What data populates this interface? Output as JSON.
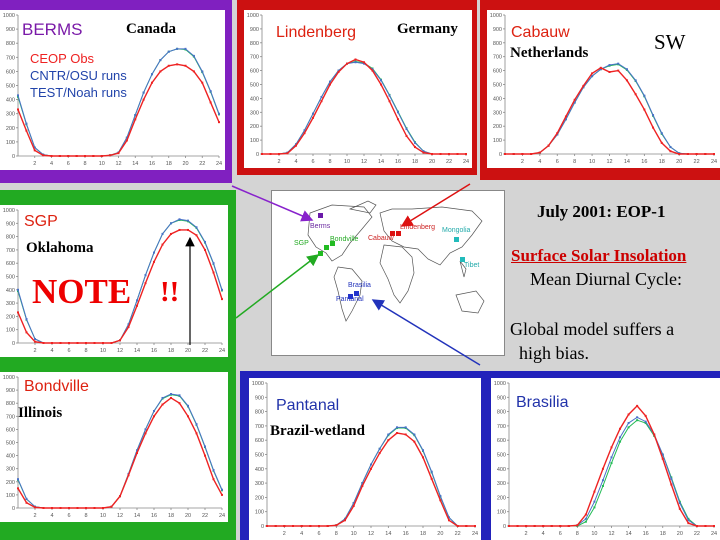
{
  "colors": {
    "obs": "#ee2222",
    "cntr": "#4a72c8",
    "test": "#22bb55"
  },
  "legend": {
    "obs": "CEOP Obs",
    "cntr": "CNTR/OSU runs",
    "test": "TEST/Noah runs"
  },
  "text": {
    "sw": "SW",
    "title": "July 2001: EOP-1",
    "heading": "Surface Solar Insolation",
    "subheading": "Mean Diurnal Cycle:",
    "note": "NOTE",
    "exclaim": "!!",
    "bias_line1": "Global model suffers a",
    "bias_line2": "high bias."
  },
  "map_labels": [
    "Berms",
    "Bondville",
    "SGP",
    "Lindenberg",
    "Cabauw",
    "Mongolia",
    "Tibet",
    "Brasilia",
    "Pantanal"
  ],
  "chart_data": [
    {
      "type": "line",
      "site": "BERMS",
      "region": "Canada",
      "xlim": [
        0,
        24
      ],
      "ylim": [
        0,
        1000
      ],
      "x": [
        0,
        1,
        2,
        3,
        4,
        5,
        6,
        7,
        8,
        9,
        10,
        11,
        12,
        13,
        14,
        15,
        16,
        17,
        18,
        19,
        20,
        21,
        22,
        23,
        24
      ],
      "xticks": [
        "2",
        "4",
        "6",
        "8",
        "10",
        "12",
        "14",
        "16",
        "18",
        "20",
        "22",
        "24"
      ],
      "yticks": [
        "0",
        "100",
        "200",
        "300",
        "400",
        "500",
        "600",
        "700",
        "800",
        "900",
        "1000"
      ],
      "series": [
        {
          "key": "obs",
          "values": [
            330,
            180,
            40,
            5,
            0,
            0,
            0,
            0,
            0,
            0,
            0,
            5,
            20,
            110,
            260,
            400,
            520,
            600,
            640,
            650,
            640,
            600,
            520,
            380,
            240
          ]
        },
        {
          "key": "cntr",
          "values": [
            430,
            230,
            60,
            10,
            0,
            0,
            0,
            0,
            0,
            0,
            0,
            5,
            25,
            130,
            290,
            450,
            580,
            680,
            740,
            760,
            760,
            710,
            600,
            460,
            300
          ]
        },
        {
          "key": "test",
          "values": [
            420,
            225,
            60,
            10,
            0,
            0,
            0,
            0,
            0,
            0,
            0,
            5,
            25,
            130,
            290,
            450,
            580,
            680,
            740,
            760,
            755,
            705,
            595,
            455,
            295
          ]
        }
      ]
    },
    {
      "type": "line",
      "site": "Lindenberg",
      "region": "Germany",
      "xlim": [
        0,
        24
      ],
      "ylim": [
        0,
        1000
      ],
      "x": [
        0,
        1,
        2,
        3,
        4,
        5,
        6,
        7,
        8,
        9,
        10,
        11,
        12,
        13,
        14,
        15,
        16,
        17,
        18,
        19,
        20,
        21,
        22,
        23,
        24
      ],
      "xticks": [
        "2",
        "4",
        "6",
        "8",
        "10",
        "12",
        "14",
        "16",
        "18",
        "20",
        "22",
        "24"
      ],
      "yticks": [
        "0",
        "100",
        "200",
        "300",
        "400",
        "500",
        "600",
        "700",
        "800",
        "900",
        "1000"
      ],
      "series": [
        {
          "key": "obs",
          "values": [
            0,
            0,
            0,
            5,
            60,
            150,
            260,
            380,
            500,
            590,
            650,
            680,
            660,
            600,
            500,
            380,
            250,
            130,
            50,
            10,
            0,
            0,
            0,
            0,
            0
          ]
        },
        {
          "key": "cntr",
          "values": [
            0,
            0,
            0,
            10,
            70,
            170,
            290,
            410,
            520,
            600,
            650,
            660,
            650,
            610,
            530,
            420,
            300,
            180,
            80,
            20,
            0,
            0,
            0,
            0,
            0
          ]
        },
        {
          "key": "test",
          "values": [
            0,
            0,
            0,
            10,
            70,
            170,
            290,
            410,
            520,
            600,
            650,
            665,
            655,
            615,
            535,
            425,
            305,
            185,
            85,
            20,
            0,
            0,
            0,
            0,
            0
          ]
        }
      ]
    },
    {
      "type": "line",
      "site": "Cabauw",
      "region": "Netherlands",
      "xlim": [
        0,
        24
      ],
      "ylim": [
        0,
        1000
      ],
      "x": [
        0,
        1,
        2,
        3,
        4,
        5,
        6,
        7,
        8,
        9,
        10,
        11,
        12,
        13,
        14,
        15,
        16,
        17,
        18,
        19,
        20,
        21,
        22,
        23,
        24
      ],
      "xticks": [
        "2",
        "4",
        "6",
        "8",
        "10",
        "12",
        "14",
        "16",
        "18",
        "20",
        "22",
        "24"
      ],
      "yticks": [
        "0",
        "100",
        "200",
        "300",
        "400",
        "500",
        "600",
        "700",
        "800",
        "900",
        "1000"
      ],
      "series": [
        {
          "key": "obs",
          "values": [
            0,
            0,
            0,
            0,
            10,
            60,
            150,
            270,
            390,
            490,
            580,
            620,
            590,
            600,
            530,
            430,
            320,
            190,
            80,
            20,
            0,
            0,
            0,
            0,
            0
          ]
        },
        {
          "key": "cntr",
          "values": [
            0,
            0,
            0,
            0,
            10,
            60,
            140,
            250,
            370,
            480,
            560,
            610,
            640,
            650,
            610,
            530,
            420,
            280,
            150,
            50,
            5,
            0,
            0,
            0,
            0
          ]
        },
        {
          "key": "test",
          "values": [
            0,
            0,
            0,
            0,
            10,
            60,
            140,
            250,
            370,
            480,
            560,
            610,
            635,
            645,
            605,
            525,
            415,
            275,
            145,
            50,
            5,
            0,
            0,
            0,
            0
          ]
        }
      ]
    },
    {
      "type": "line",
      "site": "SGP",
      "region": "Oklahoma",
      "xlim": [
        0,
        24
      ],
      "ylim": [
        0,
        1000
      ],
      "x": [
        0,
        1,
        2,
        3,
        4,
        5,
        6,
        7,
        8,
        9,
        10,
        11,
        12,
        13,
        14,
        15,
        16,
        17,
        18,
        19,
        20,
        21,
        22,
        23,
        24
      ],
      "xticks": [
        "2",
        "4",
        "6",
        "8",
        "10",
        "12",
        "14",
        "16",
        "18",
        "20",
        "22",
        "24"
      ],
      "yticks": [
        "0",
        "100",
        "200",
        "300",
        "400",
        "500",
        "600",
        "700",
        "800",
        "900",
        "1000"
      ],
      "series": [
        {
          "key": "obs",
          "values": [
            230,
            80,
            10,
            0,
            0,
            0,
            0,
            0,
            0,
            0,
            0,
            0,
            20,
            120,
            280,
            450,
            610,
            740,
            820,
            850,
            850,
            810,
            700,
            530,
            330
          ]
        },
        {
          "key": "cntr",
          "values": [
            400,
            180,
            30,
            0,
            0,
            0,
            0,
            0,
            0,
            0,
            0,
            0,
            20,
            140,
            320,
            510,
            680,
            820,
            900,
            930,
            920,
            870,
            760,
            600,
            400
          ]
        },
        {
          "key": "test",
          "values": [
            390,
            175,
            30,
            0,
            0,
            0,
            0,
            0,
            0,
            0,
            0,
            0,
            20,
            140,
            320,
            510,
            680,
            820,
            900,
            925,
            915,
            865,
            755,
            595,
            395
          ]
        }
      ]
    },
    {
      "type": "line",
      "site": "Bondville",
      "region": "Illinois",
      "xlim": [
        0,
        24
      ],
      "ylim": [
        0,
        1000
      ],
      "x": [
        0,
        1,
        2,
        3,
        4,
        5,
        6,
        7,
        8,
        9,
        10,
        11,
        12,
        13,
        14,
        15,
        16,
        17,
        18,
        19,
        20,
        21,
        22,
        23,
        24
      ],
      "xticks": [
        "2",
        "4",
        "6",
        "8",
        "10",
        "12",
        "14",
        "16",
        "18",
        "20",
        "22",
        "24"
      ],
      "yticks": [
        "0",
        "100",
        "200",
        "300",
        "400",
        "500",
        "600",
        "700",
        "800",
        "900",
        "1000"
      ],
      "series": [
        {
          "key": "obs",
          "values": [
            150,
            40,
            5,
            0,
            0,
            0,
            0,
            0,
            0,
            0,
            0,
            10,
            90,
            250,
            420,
            570,
            700,
            790,
            840,
            800,
            700,
            570,
            400,
            220,
            100
          ]
        },
        {
          "key": "cntr",
          "values": [
            220,
            70,
            10,
            0,
            0,
            0,
            0,
            0,
            0,
            0,
            0,
            10,
            90,
            260,
            440,
            600,
            740,
            840,
            870,
            860,
            780,
            640,
            470,
            290,
            140
          ]
        },
        {
          "key": "test",
          "values": [
            215,
            68,
            10,
            0,
            0,
            0,
            0,
            0,
            0,
            0,
            0,
            10,
            90,
            260,
            440,
            600,
            740,
            835,
            865,
            855,
            775,
            635,
            465,
            285,
            135
          ]
        }
      ]
    },
    {
      "type": "line",
      "site": "Pantanal",
      "region": "Brazil-wetland",
      "xlim": [
        0,
        24
      ],
      "ylim": [
        0,
        1000
      ],
      "x": [
        0,
        1,
        2,
        3,
        4,
        5,
        6,
        7,
        8,
        9,
        10,
        11,
        12,
        13,
        14,
        15,
        16,
        17,
        18,
        19,
        20,
        21,
        22,
        23,
        24
      ],
      "xticks": [
        "2",
        "4",
        "6",
        "8",
        "10",
        "12",
        "14",
        "16",
        "18",
        "20",
        "22",
        "24"
      ],
      "yticks": [
        "0",
        "100",
        "200",
        "300",
        "400",
        "500",
        "600",
        "700",
        "800",
        "900",
        "1000"
      ],
      "series": [
        {
          "key": "obs",
          "values": [
            0,
            0,
            0,
            0,
            0,
            0,
            0,
            0,
            5,
            40,
            140,
            280,
            400,
            510,
            600,
            650,
            640,
            590,
            480,
            330,
            180,
            40,
            0,
            0,
            0
          ]
        },
        {
          "key": "cntr",
          "values": [
            0,
            0,
            0,
            0,
            0,
            0,
            0,
            0,
            5,
            50,
            160,
            300,
            430,
            540,
            640,
            690,
            690,
            640,
            530,
            380,
            210,
            60,
            0,
            0,
            0
          ]
        },
        {
          "key": "test",
          "values": [
            0,
            0,
            0,
            0,
            0,
            0,
            0,
            0,
            5,
            50,
            160,
            300,
            430,
            540,
            635,
            685,
            685,
            635,
            525,
            375,
            205,
            60,
            0,
            0,
            0
          ]
        }
      ]
    },
    {
      "type": "line",
      "site": "Brasilia",
      "region": "",
      "xlim": [
        0,
        24
      ],
      "ylim": [
        0,
        1000
      ],
      "x": [
        0,
        1,
        2,
        3,
        4,
        5,
        6,
        7,
        8,
        9,
        10,
        11,
        12,
        13,
        14,
        15,
        16,
        17,
        18,
        19,
        20,
        21,
        22,
        23,
        24
      ],
      "xticks": [
        "2",
        "4",
        "6",
        "8",
        "10",
        "12",
        "14",
        "16",
        "18",
        "20",
        "22",
        "24"
      ],
      "yticks": [
        "0",
        "100",
        "200",
        "300",
        "400",
        "500",
        "600",
        "700",
        "800",
        "900",
        "1000"
      ],
      "series": [
        {
          "key": "obs",
          "values": [
            0,
            0,
            0,
            0,
            0,
            0,
            0,
            0,
            5,
            80,
            240,
            400,
            550,
            680,
            780,
            840,
            770,
            640,
            470,
            290,
            120,
            20,
            0,
            0,
            0
          ]
        },
        {
          "key": "cntr",
          "values": [
            0,
            0,
            0,
            0,
            0,
            0,
            0,
            0,
            5,
            50,
            170,
            320,
            480,
            620,
            720,
            760,
            730,
            640,
            500,
            330,
            160,
            40,
            0,
            0,
            0
          ]
        },
        {
          "key": "test",
          "values": [
            0,
            0,
            0,
            0,
            0,
            0,
            0,
            0,
            0,
            30,
            130,
            280,
            440,
            590,
            690,
            740,
            720,
            630,
            500,
            340,
            170,
            50,
            0,
            0,
            0
          ]
        }
      ]
    }
  ]
}
